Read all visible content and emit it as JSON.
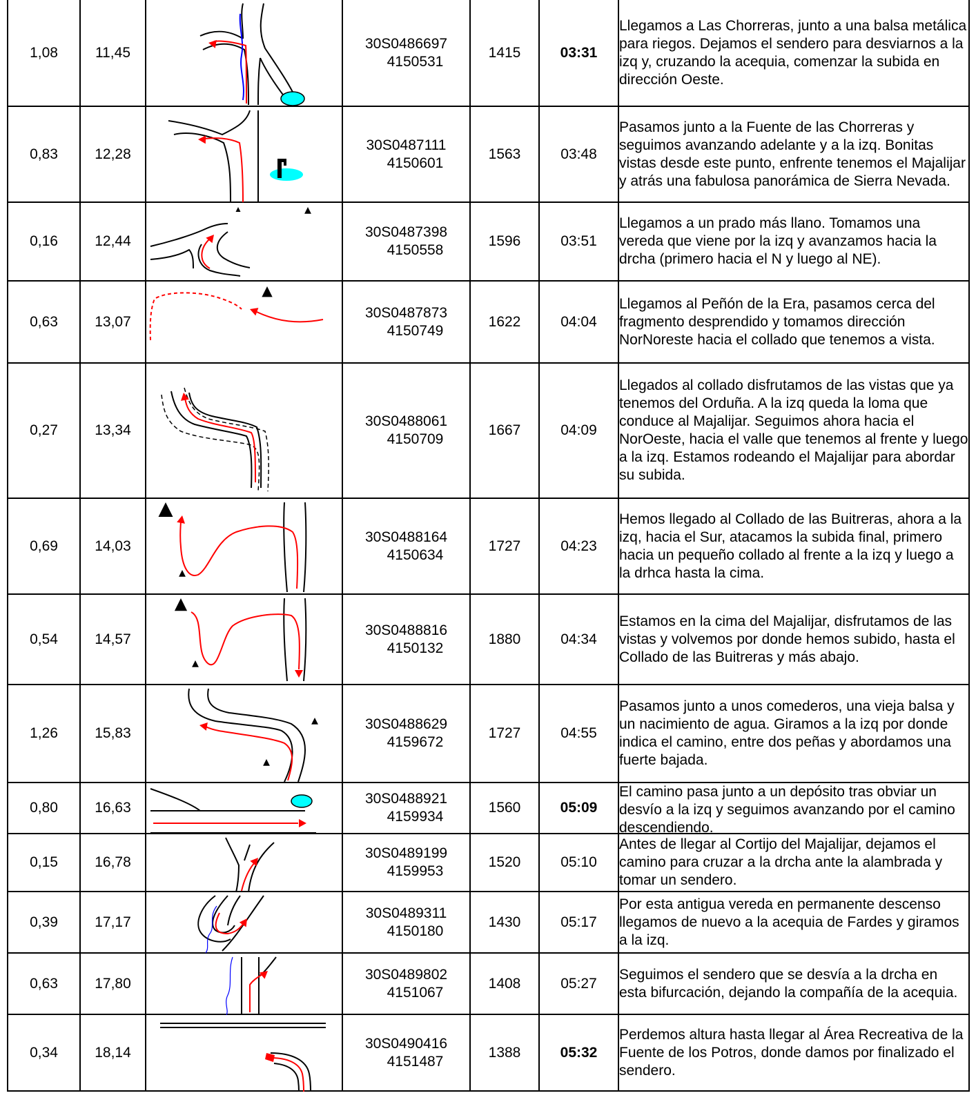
{
  "rows": [
    {
      "partial": "1,08",
      "total": "11,45",
      "coord_e": "30S0486697",
      "coord_n": "4150531",
      "alt": "1415",
      "time": "03:31",
      "time_bold": true,
      "icon": "path-junction-water-icon",
      "desc": "Llegamos a Las Chorreras, junto a una balsa metálica para riegos. Dejamos el sendero para desviarnos a la izq y, cruzando la acequia, comenzar la subida en dirección Oeste."
    },
    {
      "partial": "0,83",
      "total": "12,28",
      "coord_e": "30S0487111",
      "coord_n": "4150601",
      "alt": "1563",
      "time": "03:48",
      "time_bold": false,
      "icon": "fountain-junction-icon",
      "desc": "Pasamos junto a la Fuente de las Chorreras y seguimos avanzando adelante y a la izq. Bonitas vistas desde este punto, enfrente tenemos el Majalijar y atrás una fabulosa panorámica de Sierra Nevada."
    },
    {
      "partial": "0,16",
      "total": "12,44",
      "coord_e": "30S0487398",
      "coord_n": "4150558",
      "alt": "1596",
      "time": "03:51",
      "time_bold": false,
      "icon": "meadow-fork-icon",
      "desc": "Llegamos a un prado más llano. Tomamos una vereda que viene por la izq y avanzamos hacia la drcha (primero hacia el N y luego al NE)."
    },
    {
      "partial": "0,63",
      "total": "13,07",
      "coord_e": "30S0487873",
      "coord_n": "4150749",
      "alt": "1622",
      "time": "04:04",
      "time_bold": false,
      "icon": "rock-curve-icon",
      "desc": "Llegamos al Peñón de la Era, pasamos cerca del fragmento desprendido y tomamos dirección NorNoreste hacia el collado que tenemos a vista."
    },
    {
      "partial": "0,27",
      "total": "13,34",
      "coord_e": "30S0488061",
      "coord_n": "4150709",
      "alt": "1667",
      "time": "04:09",
      "time_bold": false,
      "icon": "pass-path-icon",
      "desc": "Llegados al collado disfrutamos de las vistas que ya tenemos del Orduña. A la izq queda la loma que conduce al Majalijar. Seguimos ahora hacia el NorOeste, hacia el valle que tenemos al frente y luego a la izq. Estamos rodeando el Majalijar para abordar su subida."
    },
    {
      "partial": "0,69",
      "total": "14,03",
      "coord_e": "30S0488164",
      "coord_n": "4150634",
      "alt": "1727",
      "time": "04:23",
      "time_bold": false,
      "icon": "summit-ascent-icon",
      "desc": "Hemos llegado al Collado de las Buitreras, ahora a la izq, hacia el Sur, atacamos la subida final, primero hacia un pequeño collado al frente a la izq y luego a la drhca hasta la cima."
    },
    {
      "partial": "0,54",
      "total": "14,57",
      "coord_e": "30S0488816",
      "coord_n": "4150132",
      "alt": "1880",
      "time": "04:34",
      "time_bold": false,
      "icon": "summit-return-icon",
      "desc": "Estamos en la cima del Majalijar, disfrutamos de las vistas y volvemos por donde hemos subido, hasta el Collado de las Buitreras y más abajo."
    },
    {
      "partial": "1,26",
      "total": "15,83",
      "coord_e": "30S0488629",
      "coord_n": "4159672",
      "alt": "1727",
      "time": "04:55",
      "time_bold": false,
      "icon": "descent-turn-icon",
      "desc": "Pasamos junto a unos comederos, una vieja balsa y un nacimiento de agua. Giramos a la izq por donde indica el camino, entre dos peñas y abordamos una fuerte bajada."
    },
    {
      "partial": "0,80",
      "total": "16,63",
      "coord_e": "30S0488921",
      "coord_n": "4159934",
      "alt": "1560",
      "time": "05:09",
      "time_bold": true,
      "icon": "deposit-road-icon",
      "desc": "El camino pasa junto a un depósito tras obviar un desvío a la izq y seguimos avanzando por el camino descendiendo."
    },
    {
      "partial": "0,15",
      "total": "16,78",
      "coord_e": "30S0489199",
      "coord_n": "4159953",
      "alt": "1520",
      "time": "05:10",
      "time_bold": false,
      "icon": "fork-right-icon",
      "desc": "Antes de llegar al Cortijo del Majalijar, dejamos el camino para cruzar a la drcha ante la alambrada y tomar un sendero."
    },
    {
      "partial": "0,39",
      "total": "17,17",
      "coord_e": "30S0489311",
      "coord_n": "4150180",
      "alt": "1430",
      "time": "05:17",
      "time_bold": false,
      "icon": "acequia-turn-icon",
      "desc": "Por esta antigua vereda en permanente descenso llegamos de nuevo a la acequia de Fardes y giramos a la izq."
    },
    {
      "partial": "0,63",
      "total": "17,80",
      "coord_e": "30S0489802",
      "coord_n": "4151067",
      "alt": "1408",
      "time": "05:27",
      "time_bold": false,
      "icon": "bifurcation-icon",
      "desc": "Seguimos el sendero que se desvía a la drcha en esta bifurcación, dejando la compañía de la acequia."
    },
    {
      "partial": "0,34",
      "total": "18,14",
      "coord_e": "30S0490416",
      "coord_n": "4151487",
      "alt": "1388",
      "time": "05:32",
      "time_bold": true,
      "icon": "recreation-area-icon",
      "desc": "Perdemos altura hasta llegar al Área Recreativa de la Fuente de los Potros, donde damos por finalizado el sendero."
    }
  ],
  "colors": {
    "route": "#ff0000",
    "water": "#0000ff",
    "pond": "#00ffff",
    "line": "#000000"
  }
}
